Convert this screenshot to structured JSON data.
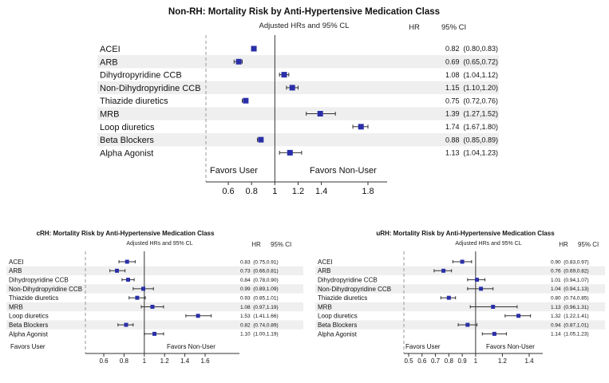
{
  "chart_data": [
    {
      "type": "forest",
      "title": "Non-RH: Mortality Risk by Anti-Hypertensive Medication Class",
      "subtitle": "Adjusted HRs and 95% CL",
      "col_hr": "HR",
      "col_ci": "95% CI",
      "favors_left": "Favors User",
      "favors_right": "Favors Non-User",
      "xticks": [
        "0.6",
        "0.8",
        "1",
        "1.2",
        "1.4",
        "1.8"
      ],
      "xlim": [
        0.45,
        1.99
      ],
      "reference": 1,
      "rows": [
        {
          "label": "ACEI",
          "hr": 0.82,
          "lo": 0.8,
          "hi": 0.83,
          "text": "0.82  (0.80,0.83)"
        },
        {
          "label": "ARB",
          "hr": 0.69,
          "lo": 0.65,
          "hi": 0.72,
          "text": "0.69  (0.65,0.72)"
        },
        {
          "label": "Dihydropyridine CCB",
          "hr": 1.08,
          "lo": 1.04,
          "hi": 1.12,
          "text": "1.08  (1.04,1.12)"
        },
        {
          "label": "Non-Dihydropyridine CCB",
          "hr": 1.15,
          "lo": 1.1,
          "hi": 1.2,
          "text": "1.15  (1.10,1.20)"
        },
        {
          "label": "Thiazide diuretics",
          "hr": 0.75,
          "lo": 0.72,
          "hi": 0.76,
          "text": "0.75  (0.72,0.76)"
        },
        {
          "label": "MRB",
          "hr": 1.39,
          "lo": 1.27,
          "hi": 1.52,
          "text": "1.39  (1.27,1.52)"
        },
        {
          "label": "Loop diuretics",
          "hr": 1.74,
          "lo": 1.67,
          "hi": 1.8,
          "text": "1.74  (1.67,1.80)"
        },
        {
          "label": "Beta Blockers",
          "hr": 0.88,
          "lo": 0.85,
          "hi": 0.89,
          "text": "0.88  (0.85,0.89)"
        },
        {
          "label": "Alpha Agonist",
          "hr": 1.13,
          "lo": 1.04,
          "hi": 1.23,
          "text": "1.13  (1.04,1.23)"
        }
      ]
    },
    {
      "type": "forest",
      "title": "cRH: Mortality Risk by Anti-Hypertensive Medication Class",
      "subtitle": "Adjusted HRs and 95% CL",
      "col_hr": "HR",
      "col_ci": "95% CI",
      "favors_left": "Favors User",
      "favors_right": "Favors Non-User",
      "xticks": [
        "0.6",
        "0.8",
        "1",
        "1.2",
        "1.4",
        "1.6"
      ],
      "xlim": [
        0.5,
        1.72
      ],
      "reference": 1,
      "rows": [
        {
          "label": "ACEI",
          "hr": 0.83,
          "lo": 0.75,
          "hi": 0.91,
          "text": "0.83  (0.75,0.91)"
        },
        {
          "label": "ARB",
          "hr": 0.73,
          "lo": 0.66,
          "hi": 0.81,
          "text": "0.73  (0.66,0.81)"
        },
        {
          "label": "Dihydropyridine CCB",
          "hr": 0.84,
          "lo": 0.78,
          "hi": 0.9,
          "text": "0.84  (0.78,0.90)"
        },
        {
          "label": "Non-Dihydropyridine CCB",
          "hr": 0.99,
          "lo": 0.89,
          "hi": 1.09,
          "text": "0.99  (0.89,1.09)"
        },
        {
          "label": "Thiazide diuretics",
          "hr": 0.93,
          "lo": 0.85,
          "hi": 1.01,
          "text": "0.93  (0.85,1.01)"
        },
        {
          "label": "MRB",
          "hr": 1.08,
          "lo": 0.97,
          "hi": 1.19,
          "text": "1.08  (0.97,1.19)"
        },
        {
          "label": "Loop diuretics",
          "hr": 1.53,
          "lo": 1.41,
          "hi": 1.66,
          "text": "1.53  (1.41,1.66)"
        },
        {
          "label": "Beta Blockers",
          "hr": 0.82,
          "lo": 0.74,
          "hi": 0.89,
          "text": "0.82  (0.74,0.89)"
        },
        {
          "label": "Alpha Agonist",
          "hr": 1.1,
          "lo": 1.0,
          "hi": 1.19,
          "text": "1.10  (1.00,1.19)"
        }
      ]
    },
    {
      "type": "forest",
      "title": "uRH: Mortality Risk by Anti-Hypertensive Medication Class",
      "subtitle": "Adjusted HRs and 95% CL",
      "col_hr": "HR",
      "col_ci": "95% CI",
      "favors_left": "Favors User",
      "favors_right": "Favors Non-User",
      "xticks": [
        "0.5",
        "0.6",
        "0.7",
        "0.8",
        "0.9",
        "1",
        "1.2",
        "1.4"
      ],
      "xlim": [
        0.5,
        1.5
      ],
      "reference": 1,
      "rows": [
        {
          "label": "ACEI",
          "hr": 0.9,
          "lo": 0.83,
          "hi": 0.97,
          "text": "0.90  (0.83,0.97)"
        },
        {
          "label": "ARB",
          "hr": 0.76,
          "lo": 0.69,
          "hi": 0.82,
          "text": "0.76  (0.69,0.82)"
        },
        {
          "label": "Dihydropyridine CCB",
          "hr": 1.01,
          "lo": 0.94,
          "hi": 1.07,
          "text": "1.01  (0.94,1.07)"
        },
        {
          "label": "Non-Dihydropyridine CCB",
          "hr": 1.04,
          "lo": 0.94,
          "hi": 1.13,
          "text": "1.04  (0.94,1.13)"
        },
        {
          "label": "Thiazide diuretics",
          "hr": 0.8,
          "lo": 0.74,
          "hi": 0.85,
          "text": "0.80  (0.74,0.85)"
        },
        {
          "label": "MRB",
          "hr": 1.13,
          "lo": 0.96,
          "hi": 1.31,
          "text": "1.13  (0.96,1.31)"
        },
        {
          "label": "Loop diuretics",
          "hr": 1.32,
          "lo": 1.22,
          "hi": 1.41,
          "text": "1.32  (1.22,1.41)"
        },
        {
          "label": "Beta Blockers",
          "hr": 0.94,
          "lo": 0.87,
          "hi": 1.01,
          "text": "0.94  (0.87,1.01)"
        },
        {
          "label": "Alpha Agonist",
          "hr": 1.14,
          "lo": 1.05,
          "hi": 1.23,
          "text": "1.14  (1.05,1.23)"
        }
      ]
    }
  ],
  "colors": {
    "marker": "#2a2fa8",
    "band": "#efefef",
    "line": "#333333",
    "dash": "#9a9a9a"
  }
}
